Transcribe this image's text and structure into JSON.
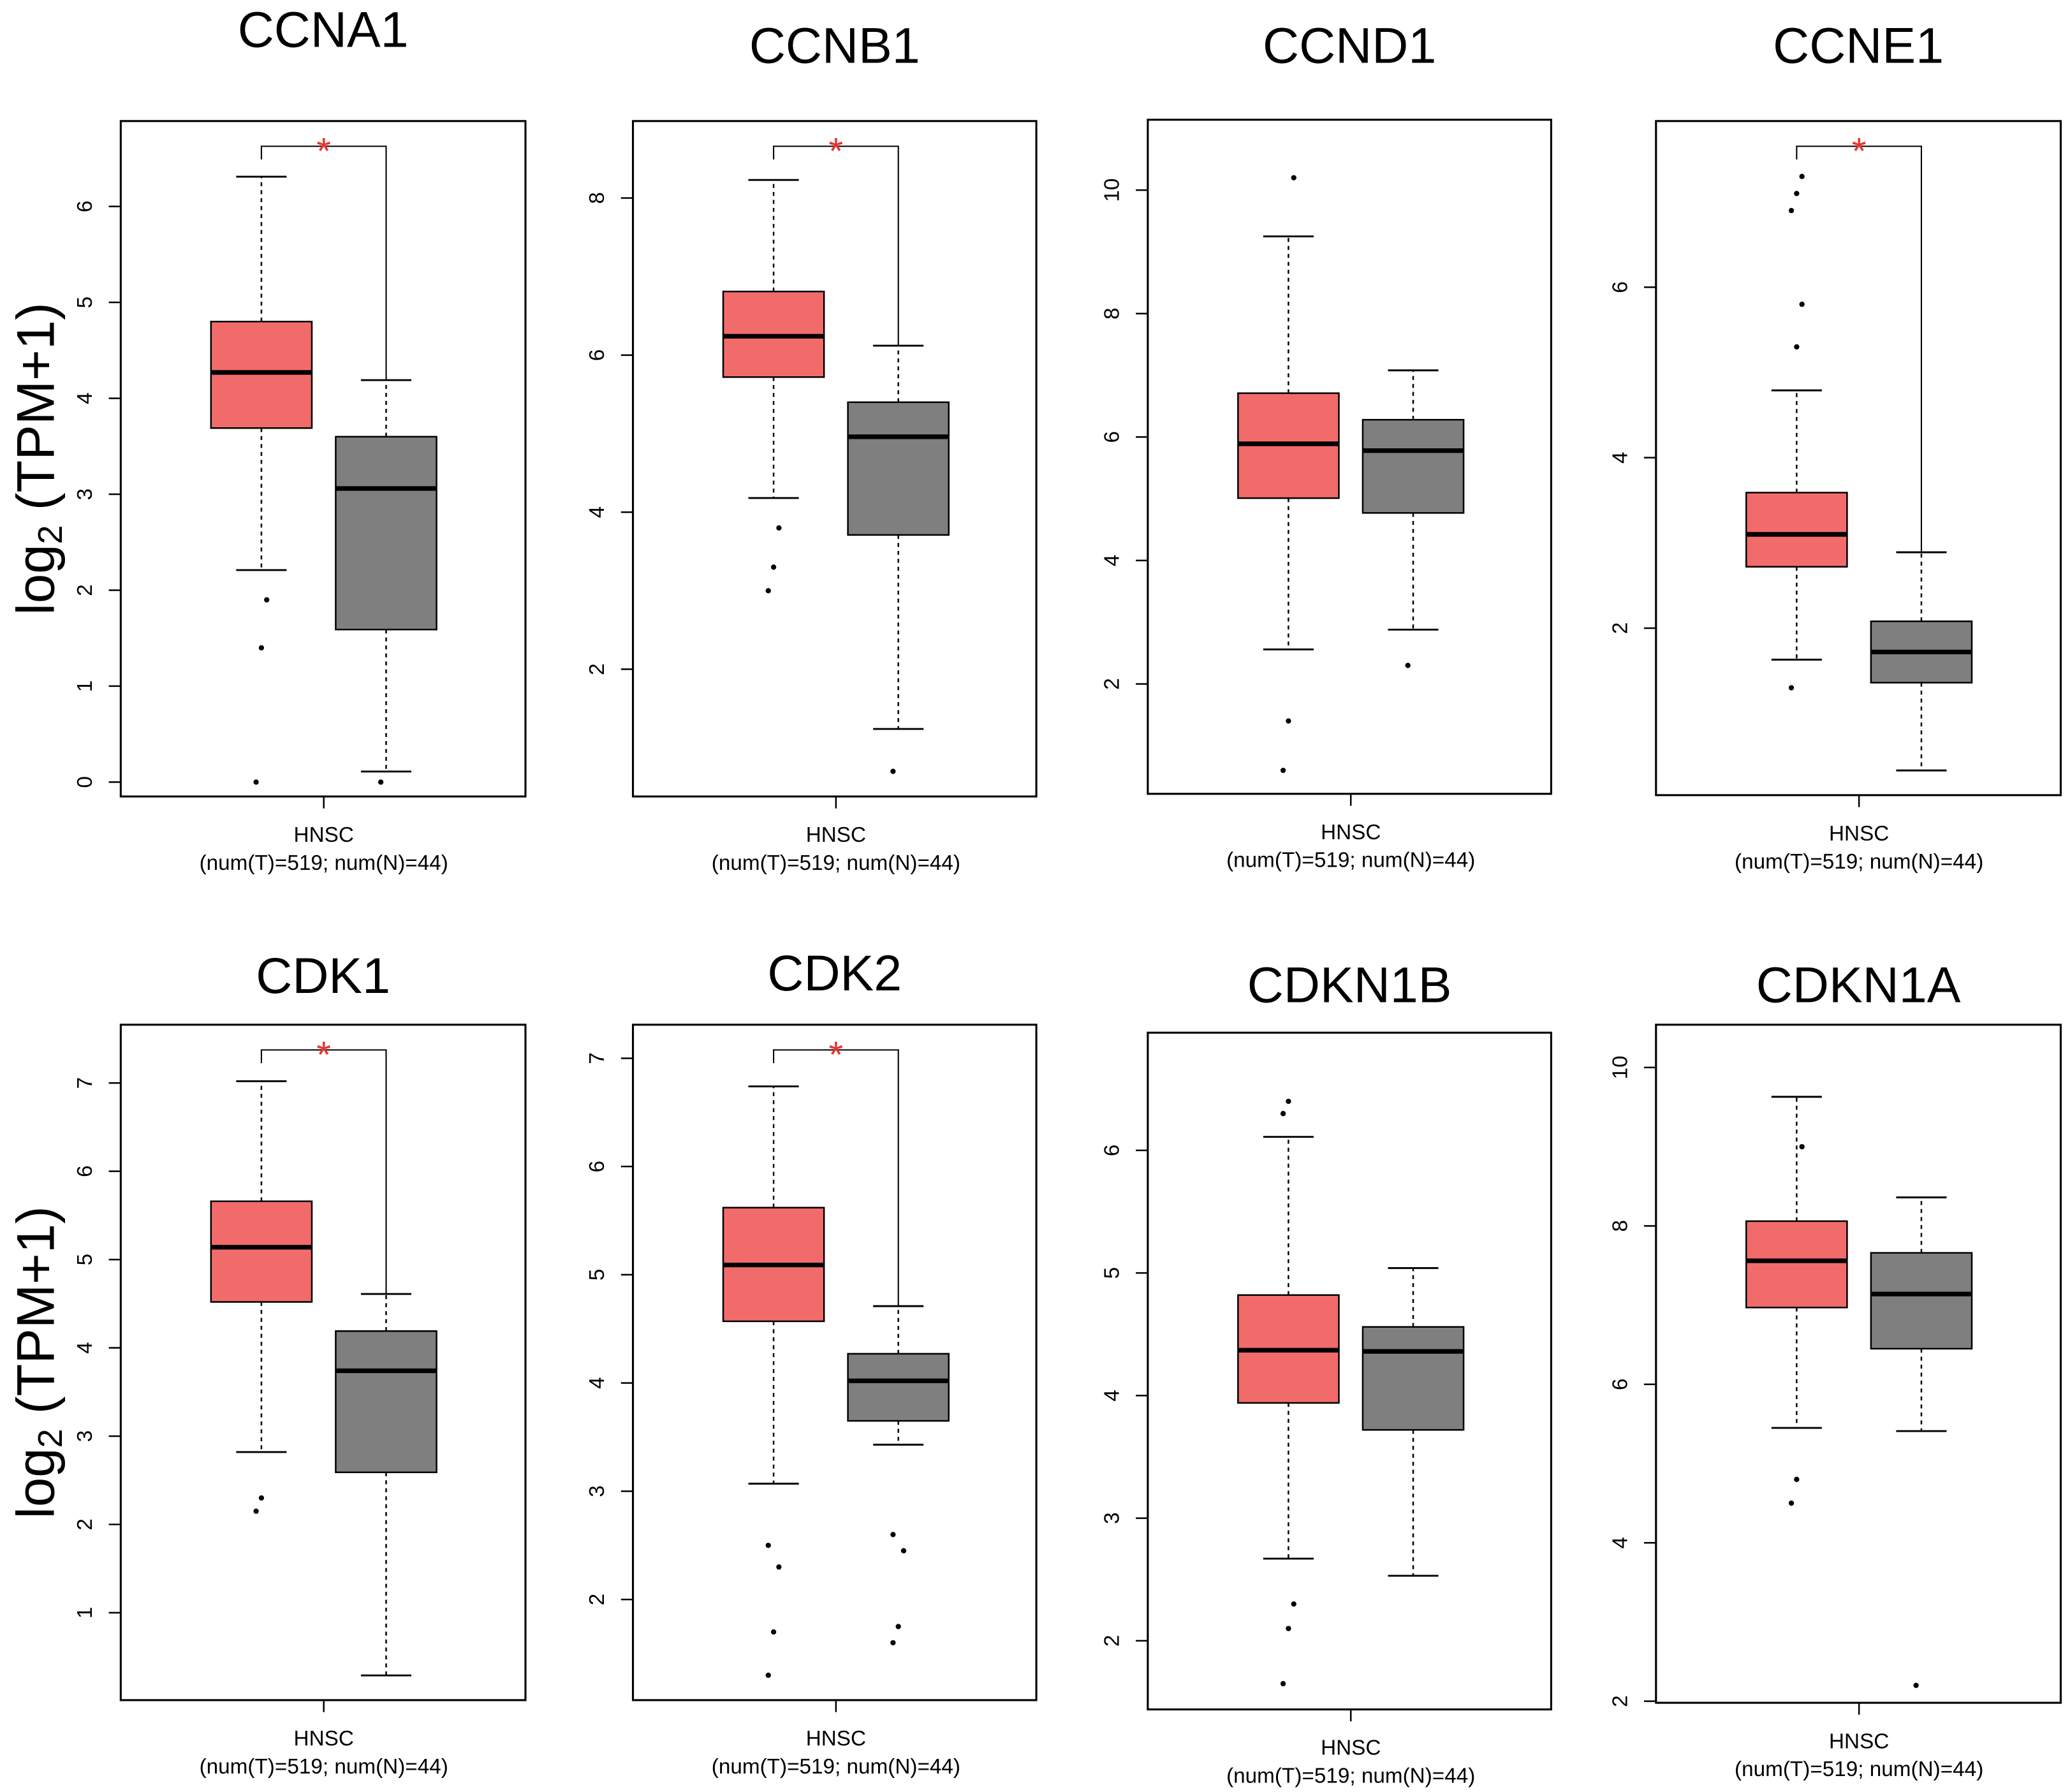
{
  "chart_data": [
    {
      "type": "box",
      "title": "CCNA1",
      "xlabel": "HNSC",
      "subtitle": "(num(T)=519; num(N)=44)",
      "ylabel": [
        "log",
        "2",
        " (TPM+1)"
      ],
      "annotation": "*",
      "ylim": [
        -0.15,
        6.89
      ],
      "yticks": [
        0,
        1,
        2,
        3,
        4,
        5,
        6
      ],
      "series": [
        {
          "color": "#f26b6b",
          "min": 2.21,
          "q1": 3.69,
          "median": 4.27,
          "q3": 4.8,
          "max": 6.31,
          "outliers": [
            0,
            1.4,
            1.9
          ]
        },
        {
          "color": "#7f7f7f",
          "min": 0.11,
          "q1": 1.59,
          "median": 3.06,
          "q3": 3.6,
          "max": 4.19,
          "outliers": [
            0
          ]
        }
      ]
    },
    {
      "type": "box",
      "title": "CCNB1",
      "xlabel": "HNSC",
      "subtitle": "(num(T)=519; num(N)=44)",
      "annotation": "*",
      "ylim": [
        0.38,
        8.98
      ],
      "yticks": [
        2,
        4,
        6,
        8
      ],
      "series": [
        {
          "color": "#f26b6b",
          "min": 4.18,
          "q1": 5.72,
          "median": 6.24,
          "q3": 6.81,
          "max": 8.23,
          "outliers": [
            3.0,
            3.3,
            3.8
          ]
        },
        {
          "color": "#7f7f7f",
          "min": 1.24,
          "q1": 3.71,
          "median": 4.96,
          "q3": 5.4,
          "max": 6.12,
          "outliers": [
            0.7
          ]
        }
      ]
    },
    {
      "type": "box",
      "title": "CCND1",
      "xlabel": "HNSC",
      "subtitle": "(num(T)=519; num(N)=44)",
      "ylim": [
        0.22,
        11.14
      ],
      "yticks": [
        2,
        4,
        6,
        8,
        10
      ],
      "series": [
        {
          "color": "#f26b6b",
          "min": 2.56,
          "q1": 5.01,
          "median": 5.89,
          "q3": 6.71,
          "max": 9.25,
          "outliers": [
            0.6,
            1.4,
            10.2
          ]
        },
        {
          "color": "#7f7f7f",
          "min": 2.88,
          "q1": 4.77,
          "median": 5.78,
          "q3": 6.28,
          "max": 7.08,
          "outliers": [
            2.3
          ]
        }
      ]
    },
    {
      "type": "box",
      "title": "CCNE1",
      "xlabel": "HNSC",
      "subtitle": "(num(T)=519; num(N)=44)",
      "annotation": "*",
      "ylim": [
        0.04,
        7.95
      ],
      "yticks": [
        2,
        4,
        6
      ],
      "series": [
        {
          "color": "#f26b6b",
          "min": 1.63,
          "q1": 2.72,
          "median": 3.1,
          "q3": 3.59,
          "max": 4.79,
          "outliers": [
            1.3,
            5.3,
            5.8,
            6.9,
            7.1,
            7.3
          ]
        },
        {
          "color": "#7f7f7f",
          "min": 0.33,
          "q1": 1.36,
          "median": 1.72,
          "q3": 2.08,
          "max": 2.89,
          "outliers": []
        }
      ]
    },
    {
      "type": "box",
      "title": "CDK1",
      "xlabel": "HNSC",
      "subtitle": "(num(T)=519; num(N)=44)",
      "ylabel": [
        "log",
        "2",
        " (TPM+1)"
      ],
      "annotation": "*",
      "ylim": [
        0.01,
        7.66
      ],
      "yticks": [
        1,
        2,
        3,
        4,
        5,
        6,
        7
      ],
      "series": [
        {
          "color": "#f26b6b",
          "min": 2.82,
          "q1": 4.52,
          "median": 5.14,
          "q3": 5.66,
          "max": 7.02,
          "outliers": [
            2.15,
            2.3
          ]
        },
        {
          "color": "#7f7f7f",
          "min": 0.29,
          "q1": 2.59,
          "median": 3.74,
          "q3": 4.19,
          "max": 4.61,
          "outliers": []
        }
      ]
    },
    {
      "type": "box",
      "title": "CDK2",
      "xlabel": "HNSC",
      "subtitle": "(num(T)=519; num(N)=44)",
      "annotation": "*",
      "ylim": [
        1.07,
        7.31
      ],
      "yticks": [
        2,
        3,
        4,
        5,
        6,
        7
      ],
      "series": [
        {
          "color": "#f26b6b",
          "min": 3.07,
          "q1": 4.57,
          "median": 5.09,
          "q3": 5.62,
          "max": 6.74,
          "outliers": [
            1.3,
            1.7,
            2.3,
            2.5
          ]
        },
        {
          "color": "#7f7f7f",
          "min": 3.43,
          "q1": 3.65,
          "median": 4.02,
          "q3": 4.27,
          "max": 4.71,
          "outliers": [
            1.6,
            1.75,
            2.45,
            2.6
          ]
        }
      ]
    },
    {
      "type": "box",
      "title": "CDKN1B",
      "xlabel": "HNSC",
      "subtitle": "(num(T)=519; num(N)=44)",
      "ylim": [
        1.44,
        6.96
      ],
      "yticks": [
        2,
        3,
        4,
        5,
        6
      ],
      "series": [
        {
          "color": "#f26b6b",
          "min": 2.67,
          "q1": 3.94,
          "median": 4.37,
          "q3": 4.82,
          "max": 6.11,
          "outliers": [
            1.65,
            2.1,
            2.3,
            6.3,
            6.4
          ]
        },
        {
          "color": "#7f7f7f",
          "min": 2.53,
          "q1": 3.72,
          "median": 4.36,
          "q3": 4.56,
          "max": 5.04,
          "outliers": []
        }
      ]
    },
    {
      "type": "box",
      "title": "CDKN1A",
      "xlabel": "HNSC",
      "subtitle": "(num(T)=519; num(N)=44)",
      "ylim": [
        1.98,
        10.54
      ],
      "yticks": [
        2,
        4,
        6,
        8,
        10
      ],
      "series": [
        {
          "color": "#f26b6b",
          "min": 5.45,
          "q1": 6.97,
          "median": 7.56,
          "q3": 8.06,
          "max": 9.63,
          "outliers": [
            4.5,
            4.8,
            9.0
          ]
        },
        {
          "color": "#7f7f7f",
          "min": 5.41,
          "q1": 6.45,
          "median": 7.14,
          "q3": 7.66,
          "max": 8.36,
          "outliers": [
            2.2
          ]
        }
      ]
    }
  ]
}
